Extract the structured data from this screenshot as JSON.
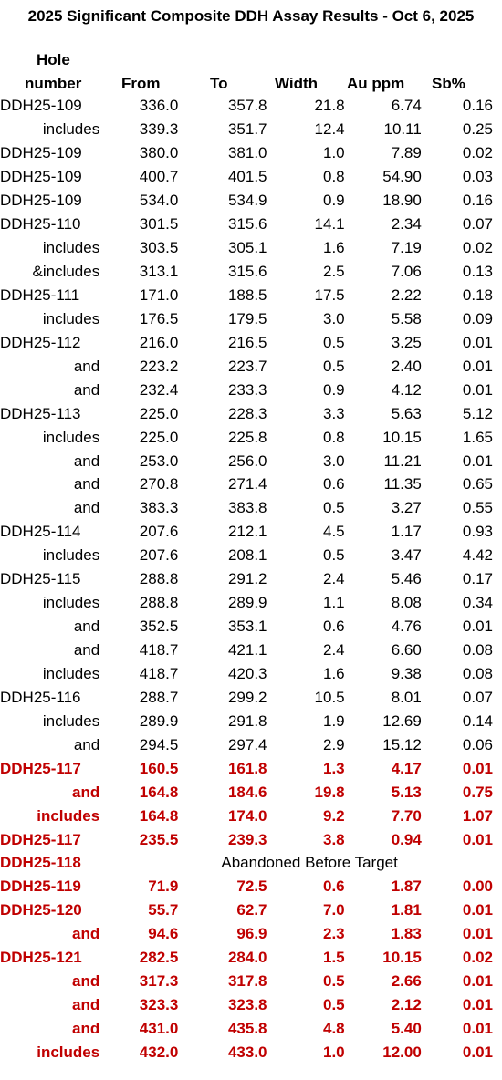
{
  "title": "2025 Significant Composite DDH Assay Results - Oct 6, 2025",
  "headers": {
    "hole_line1": "Hole",
    "hole_line2": "number",
    "from": "From",
    "to": "To",
    "width": "Width",
    "au": "Au ppm",
    "sb": "Sb%"
  },
  "rows": [
    {
      "hole": "DDH25-109",
      "from": "336.0",
      "to": "357.8",
      "width": "21.8",
      "au": "6.74",
      "sb": "0.16",
      "red": false,
      "sub": false
    },
    {
      "hole": "includes",
      "from": "339.3",
      "to": "351.7",
      "width": "12.4",
      "au": "10.11",
      "sb": "0.25",
      "red": false,
      "sub": true
    },
    {
      "hole": "DDH25-109",
      "from": "380.0",
      "to": "381.0",
      "width": "1.0",
      "au": "7.89",
      "sb": "0.02",
      "red": false,
      "sub": false
    },
    {
      "hole": "DDH25-109",
      "from": "400.7",
      "to": "401.5",
      "width": "0.8",
      "au": "54.90",
      "sb": "0.03",
      "red": false,
      "sub": false
    },
    {
      "hole": "DDH25-109",
      "from": "534.0",
      "to": "534.9",
      "width": "0.9",
      "au": "18.90",
      "sb": "0.16",
      "red": false,
      "sub": false
    },
    {
      "hole": "DDH25-110",
      "from": "301.5",
      "to": "315.6",
      "width": "14.1",
      "au": "2.34",
      "sb": "0.07",
      "red": false,
      "sub": false
    },
    {
      "hole": "includes",
      "from": "303.5",
      "to": "305.1",
      "width": "1.6",
      "au": "7.19",
      "sb": "0.02",
      "red": false,
      "sub": true
    },
    {
      "hole": "&includes",
      "from": "313.1",
      "to": "315.6",
      "width": "2.5",
      "au": "7.06",
      "sb": "0.13",
      "red": false,
      "sub": true
    },
    {
      "hole": "DDH25-111",
      "from": "171.0",
      "to": "188.5",
      "width": "17.5",
      "au": "2.22",
      "sb": "0.18",
      "red": false,
      "sub": false
    },
    {
      "hole": "includes",
      "from": "176.5",
      "to": "179.5",
      "width": "3.0",
      "au": "5.58",
      "sb": "0.09",
      "red": false,
      "sub": true
    },
    {
      "hole": "DDH25-112",
      "from": "216.0",
      "to": "216.5",
      "width": "0.5",
      "au": "3.25",
      "sb": "0.01",
      "red": false,
      "sub": false
    },
    {
      "hole": "and",
      "from": "223.2",
      "to": "223.7",
      "width": "0.5",
      "au": "2.40",
      "sb": "0.01",
      "red": false,
      "sub": true
    },
    {
      "hole": "and",
      "from": "232.4",
      "to": "233.3",
      "width": "0.9",
      "au": "4.12",
      "sb": "0.01",
      "red": false,
      "sub": true
    },
    {
      "hole": "DDH25-113",
      "from": "225.0",
      "to": "228.3",
      "width": "3.3",
      "au": "5.63",
      "sb": "5.12",
      "red": false,
      "sub": false
    },
    {
      "hole": "includes",
      "from": "225.0",
      "to": "225.8",
      "width": "0.8",
      "au": "10.15",
      "sb": "1.65",
      "red": false,
      "sub": true
    },
    {
      "hole": "and",
      "from": "253.0",
      "to": "256.0",
      "width": "3.0",
      "au": "11.21",
      "sb": "0.01",
      "red": false,
      "sub": true
    },
    {
      "hole": "and",
      "from": "270.8",
      "to": "271.4",
      "width": "0.6",
      "au": "11.35",
      "sb": "0.65",
      "red": false,
      "sub": true
    },
    {
      "hole": "and",
      "from": "383.3",
      "to": "383.8",
      "width": "0.5",
      "au": "3.27",
      "sb": "0.55",
      "red": false,
      "sub": true
    },
    {
      "hole": "DDH25-114",
      "from": "207.6",
      "to": "212.1",
      "width": "4.5",
      "au": "1.17",
      "sb": "0.93",
      "red": false,
      "sub": false
    },
    {
      "hole": "includes",
      "from": "207.6",
      "to": "208.1",
      "width": "0.5",
      "au": "3.47",
      "sb": "4.42",
      "red": false,
      "sub": true
    },
    {
      "hole": "DDH25-115",
      "from": "288.8",
      "to": "291.2",
      "width": "2.4",
      "au": "5.46",
      "sb": "0.17",
      "red": false,
      "sub": false
    },
    {
      "hole": "includes",
      "from": "288.8",
      "to": "289.9",
      "width": "1.1",
      "au": "8.08",
      "sb": "0.34",
      "red": false,
      "sub": true
    },
    {
      "hole": "and",
      "from": "352.5",
      "to": "353.1",
      "width": "0.6",
      "au": "4.76",
      "sb": "0.01",
      "red": false,
      "sub": true
    },
    {
      "hole": "and",
      "from": "418.7",
      "to": "421.1",
      "width": "2.4",
      "au": "6.60",
      "sb": "0.08",
      "red": false,
      "sub": true
    },
    {
      "hole": "includes",
      "from": "418.7",
      "to": "420.3",
      "width": "1.6",
      "au": "9.38",
      "sb": "0.08",
      "red": false,
      "sub": true
    },
    {
      "hole": "DDH25-116",
      "from": "288.7",
      "to": "299.2",
      "width": "10.5",
      "au": "8.01",
      "sb": "0.07",
      "red": false,
      "sub": false
    },
    {
      "hole": "includes",
      "from": "289.9",
      "to": "291.8",
      "width": "1.9",
      "au": "12.69",
      "sb": "0.14",
      "red": false,
      "sub": true
    },
    {
      "hole": "and",
      "from": "294.5",
      "to": "297.4",
      "width": "2.9",
      "au": "15.12",
      "sb": "0.06",
      "red": false,
      "sub": true
    },
    {
      "hole": "DDH25-117",
      "from": "160.5",
      "to": "161.8",
      "width": "1.3",
      "au": "4.17",
      "sb": "0.01",
      "red": true,
      "sub": false
    },
    {
      "hole": "and",
      "from": "164.8",
      "to": "184.6",
      "width": "19.8",
      "au": "5.13",
      "sb": "0.75",
      "red": true,
      "sub": true
    },
    {
      "hole": "includes",
      "from": "164.8",
      "to": "174.0",
      "width": "9.2",
      "au": "7.70",
      "sb": "1.07",
      "red": true,
      "sub": true
    },
    {
      "hole": "DDH25-117",
      "from": "235.5",
      "to": "239.3",
      "width": "3.8",
      "au": "0.94",
      "sb": "0.01",
      "red": true,
      "sub": false
    },
    {
      "hole": "DDH25-118",
      "note": "Abandoned Before Target",
      "red": true,
      "sub": false
    },
    {
      "hole": "DDH25-119",
      "from": "71.9",
      "to": "72.5",
      "width": "0.6",
      "au": "1.87",
      "sb": "0.00",
      "red": true,
      "sub": false
    },
    {
      "hole": "DDH25-120",
      "from": "55.7",
      "to": "62.7",
      "width": "7.0",
      "au": "1.81",
      "sb": "0.01",
      "red": true,
      "sub": false
    },
    {
      "hole": "and",
      "from": "94.6",
      "to": "96.9",
      "width": "2.3",
      "au": "1.83",
      "sb": "0.01",
      "red": true,
      "sub": true
    },
    {
      "hole": "DDH25-121",
      "from": "282.5",
      "to": "284.0",
      "width": "1.5",
      "au": "10.15",
      "sb": "0.02",
      "red": true,
      "sub": false
    },
    {
      "hole": "and",
      "from": "317.3",
      "to": "317.8",
      "width": "0.5",
      "au": "2.66",
      "sb": "0.01",
      "red": true,
      "sub": true
    },
    {
      "hole": "and",
      "from": "323.3",
      "to": "323.8",
      "width": "0.5",
      "au": "2.12",
      "sb": "0.01",
      "red": true,
      "sub": true
    },
    {
      "hole": "and",
      "from": "431.0",
      "to": "435.8",
      "width": "4.8",
      "au": "5.40",
      "sb": "0.01",
      "red": true,
      "sub": true
    },
    {
      "hole": "includes",
      "from": "432.0",
      "to": "433.0",
      "width": "1.0",
      "au": "12.00",
      "sb": "0.01",
      "red": true,
      "sub": true
    }
  ]
}
